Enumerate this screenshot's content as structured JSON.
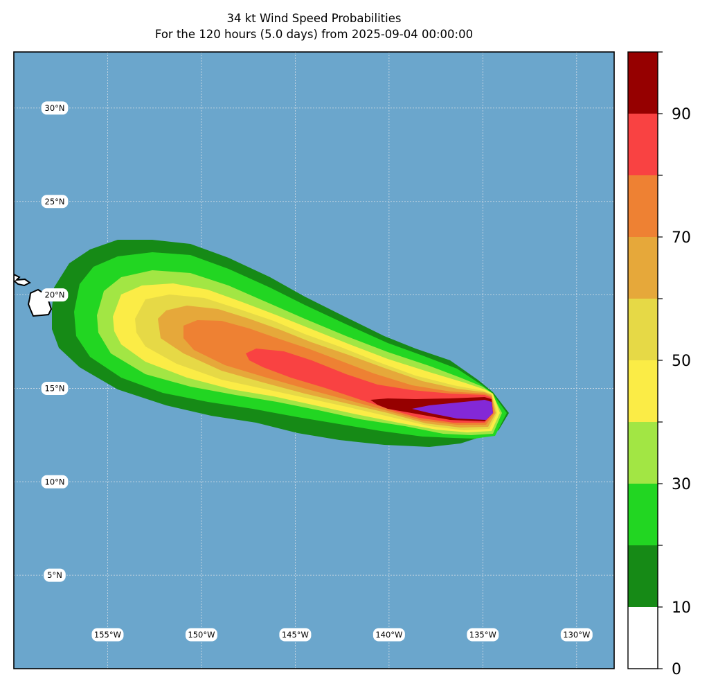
{
  "title": {
    "line1": "34 kt Wind Speed Probabilities",
    "line2": "For the 120 hours (5.0 days) from 2025-09-04 00:00:00"
  },
  "map": {
    "ocean_color": "#6ba6cc",
    "land_color": "#ffffff",
    "lon_range": [
      -160,
      -128
    ],
    "lat_range": [
      0,
      33
    ],
    "lon_ticks": [
      -155,
      -150,
      -145,
      -140,
      -135,
      -130
    ],
    "lat_ticks": [
      5,
      10,
      15,
      20,
      25,
      30
    ],
    "lon_labels": [
      "155°W",
      "150°W",
      "145°W",
      "140°W",
      "135°W",
      "130°W"
    ],
    "lat_labels": [
      "5°N",
      "10°N",
      "15°N",
      "20°N",
      "25°N",
      "30°N"
    ]
  },
  "colorbar": {
    "levels": [
      0,
      10,
      20,
      30,
      40,
      50,
      60,
      70,
      80,
      90,
      100
    ],
    "colors": [
      "#ffffff",
      "#168a16",
      "#22d622",
      "#a2e644",
      "#fbec46",
      "#e6d946",
      "#e6a83a",
      "#ee8133",
      "#f94242",
      "#960000",
      "#8328d7"
    ],
    "tick_labels": [
      "0",
      "10",
      "30",
      "50",
      "70",
      "90"
    ]
  }
}
